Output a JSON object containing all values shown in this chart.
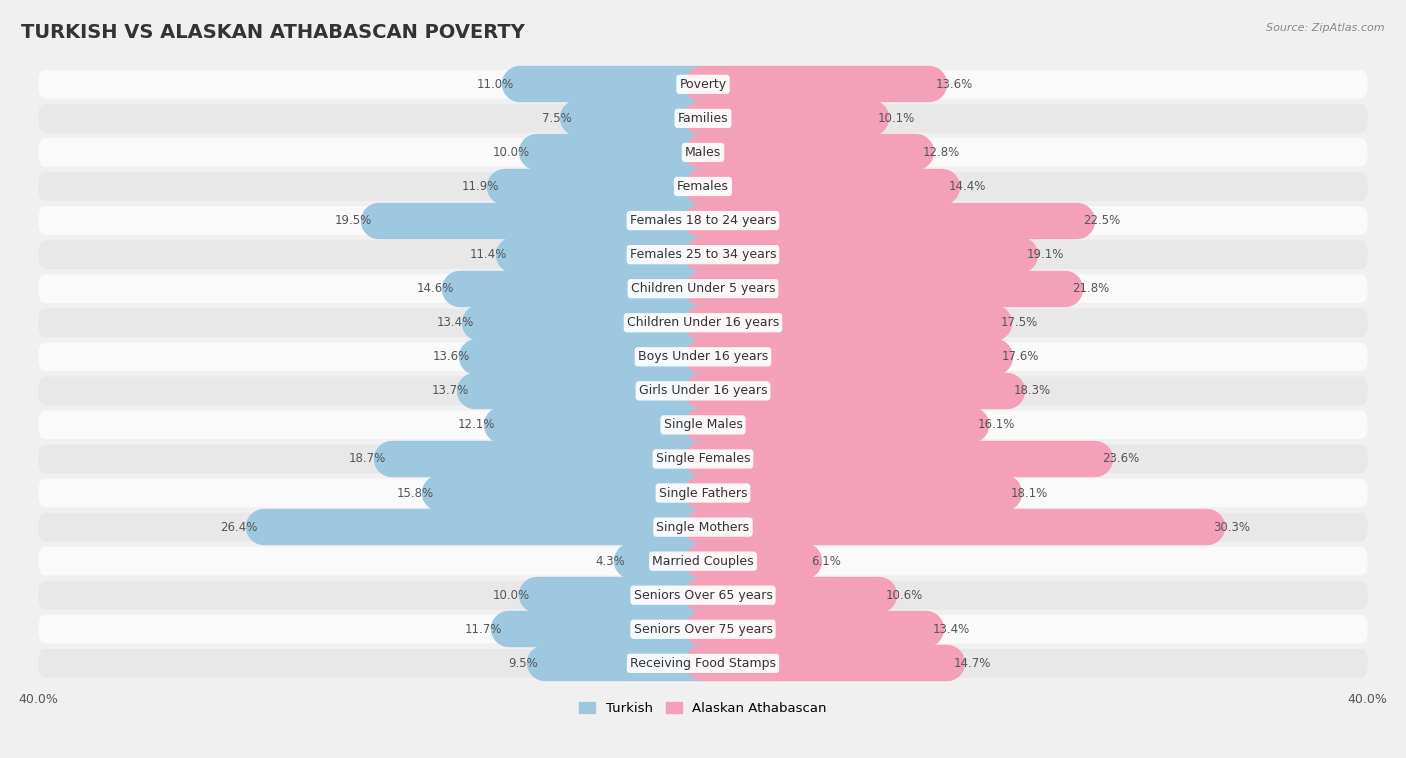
{
  "title": "TURKISH VS ALASKAN ATHABASCAN POVERTY",
  "source": "Source: ZipAtlas.com",
  "categories": [
    "Poverty",
    "Families",
    "Males",
    "Females",
    "Females 18 to 24 years",
    "Females 25 to 34 years",
    "Children Under 5 years",
    "Children Under 16 years",
    "Boys Under 16 years",
    "Girls Under 16 years",
    "Single Males",
    "Single Females",
    "Single Fathers",
    "Single Mothers",
    "Married Couples",
    "Seniors Over 65 years",
    "Seniors Over 75 years",
    "Receiving Food Stamps"
  ],
  "turkish": [
    11.0,
    7.5,
    10.0,
    11.9,
    19.5,
    11.4,
    14.6,
    13.4,
    13.6,
    13.7,
    12.1,
    18.7,
    15.8,
    26.4,
    4.3,
    10.0,
    11.7,
    9.5
  ],
  "alaskan": [
    13.6,
    10.1,
    12.8,
    14.4,
    22.5,
    19.1,
    21.8,
    17.5,
    17.6,
    18.3,
    16.1,
    23.6,
    18.1,
    30.3,
    6.1,
    10.6,
    13.4,
    14.7
  ],
  "turkish_color": "#9ec8e0",
  "alaskan_color": "#f4a0b8",
  "bar_height": 0.52,
  "background_color": "#f0f0f0",
  "row_even_color": "#fafafa",
  "row_odd_color": "#e8e8e8",
  "title_fontsize": 14,
  "label_fontsize": 9,
  "value_fontsize": 8.5,
  "legend_turkish": "Turkish",
  "legend_alaskan": "Alaskan Athabascan",
  "xlim_left": -40,
  "xlim_right": 40
}
